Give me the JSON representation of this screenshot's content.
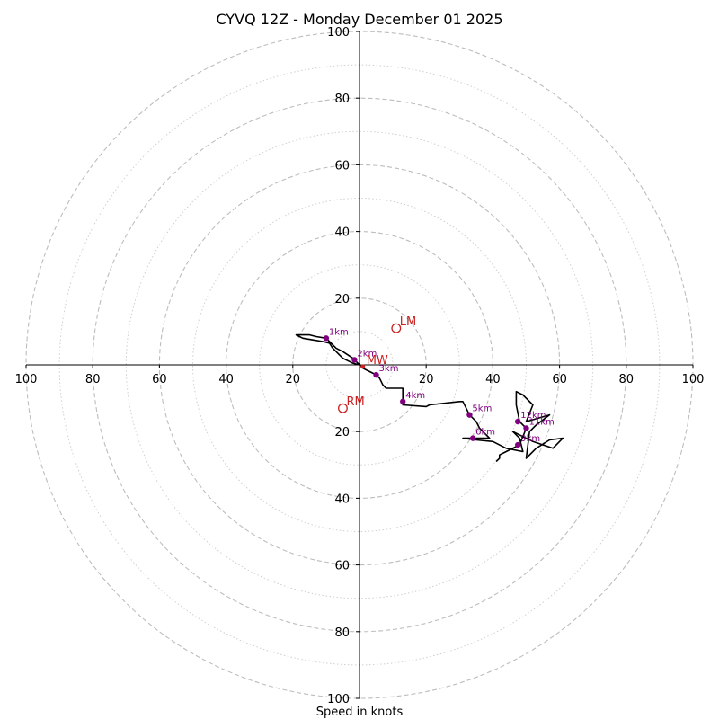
{
  "chart_data": {
    "type": "hodograph",
    "title": "CYVQ 12Z - Monday December 01 2025",
    "xlabel": "Speed in knots",
    "range": [
      -100,
      100
    ],
    "major_rings": [
      20,
      40,
      60,
      80,
      100
    ],
    "minor_rings": [
      10,
      30,
      50,
      70,
      90
    ],
    "tick_values": [
      100,
      80,
      60,
      40,
      20
    ],
    "trace": [
      [
        0,
        0
      ],
      [
        -2,
        2
      ],
      [
        -5,
        4
      ],
      [
        -7,
        5
      ],
      [
        -9,
        7
      ],
      [
        -10,
        8
      ],
      [
        -13,
        8.5
      ],
      [
        -15,
        9
      ],
      [
        -17,
        9
      ],
      [
        -19,
        9
      ],
      [
        -17,
        8
      ],
      [
        -14,
        7.5
      ],
      [
        -11,
        7
      ],
      [
        -9,
        6.5
      ],
      [
        -8,
        5
      ],
      [
        -7,
        4
      ],
      [
        -6,
        3
      ],
      [
        -5,
        2
      ],
      [
        -3,
        1
      ],
      [
        -2,
        0.5
      ],
      [
        0,
        0
      ],
      [
        1,
        -1
      ],
      [
        3,
        -2
      ],
      [
        5,
        -3
      ],
      [
        6,
        -4
      ],
      [
        7,
        -6
      ],
      [
        8,
        -7
      ],
      [
        13,
        -7
      ],
      [
        13,
        -10
      ],
      [
        13,
        -12
      ],
      [
        20,
        -12.5
      ],
      [
        21,
        -12
      ],
      [
        30,
        -11
      ],
      [
        31,
        -11
      ],
      [
        32,
        -13
      ],
      [
        33,
        -15
      ],
      [
        35,
        -17
      ],
      [
        36,
        -19
      ],
      [
        39,
        -22
      ],
      [
        35,
        -22
      ],
      [
        31,
        -22
      ],
      [
        35,
        -22.5
      ],
      [
        40,
        -23
      ],
      [
        44,
        -25
      ],
      [
        49,
        -26
      ],
      [
        48,
        -22
      ],
      [
        46,
        -20
      ],
      [
        52,
        -23
      ],
      [
        58,
        -25
      ],
      [
        61,
        -22
      ],
      [
        57,
        -22.5
      ],
      [
        53,
        -25
      ],
      [
        50,
        -28
      ],
      [
        51,
        -20
      ],
      [
        53,
        -18
      ],
      [
        57,
        -15
      ],
      [
        50,
        -17
      ],
      [
        52,
        -12
      ],
      [
        49,
        -9
      ],
      [
        47,
        -8
      ],
      [
        47,
        -12
      ],
      [
        48,
        -17
      ],
      [
        50,
        -19
      ],
      [
        48,
        -24
      ],
      [
        44,
        -26
      ],
      [
        42,
        -27
      ],
      [
        42,
        -28
      ],
      [
        41,
        -29
      ]
    ],
    "height_markers": [
      {
        "label": "1km",
        "u": -10,
        "v": 8
      },
      {
        "label": "2km",
        "u": -1.5,
        "v": 1.5
      },
      {
        "label": "3km",
        "u": 5,
        "v": -3
      },
      {
        "label": "4km",
        "u": 13,
        "v": -11
      },
      {
        "label": "5km",
        "u": 33,
        "v": -15
      },
      {
        "label": "6km",
        "u": 34,
        "v": -22
      },
      {
        "label": "9km",
        "u": 47.5,
        "v": -24
      },
      {
        "label": "11km",
        "u": 50,
        "v": -19
      },
      {
        "label": "12km",
        "u": 47.5,
        "v": -17
      }
    ],
    "storm_motions": [
      {
        "label": "LM",
        "u": 11,
        "v": 11,
        "style": "ring"
      },
      {
        "label": "RM",
        "u": -5,
        "v": -13,
        "style": "ring"
      },
      {
        "label": "MW",
        "u": 1,
        "v": -0.5,
        "style": "dot"
      }
    ]
  }
}
